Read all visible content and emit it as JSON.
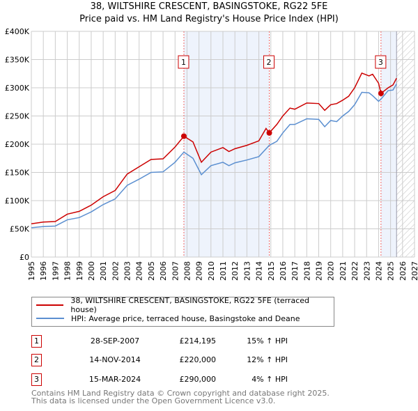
{
  "chart_data": {
    "type": "line",
    "title": "38, WILTSHIRE CRESCENT, BASINGSTOKE, RG22 5FE",
    "subtitle": "Price paid vs. HM Land Registry's House Price Index (HPI)",
    "xlim": [
      1995,
      2027
    ],
    "ylim": [
      0,
      400000
    ],
    "xticks": [
      "1995",
      "1996",
      "1997",
      "1998",
      "1999",
      "2000",
      "2001",
      "2002",
      "2003",
      "2004",
      "2005",
      "2006",
      "2007",
      "2008",
      "2009",
      "2010",
      "2011",
      "2012",
      "2013",
      "2014",
      "2015",
      "2016",
      "2017",
      "2018",
      "2019",
      "2020",
      "2021",
      "2022",
      "2023",
      "2024",
      "2025",
      "2026",
      "2027"
    ],
    "yticks": [
      {
        "v": 0,
        "l": "£0"
      },
      {
        "v": 50000,
        "l": "£50K"
      },
      {
        "v": 100000,
        "l": "£100K"
      },
      {
        "v": 150000,
        "l": "£150K"
      },
      {
        "v": 200000,
        "l": "£200K"
      },
      {
        "v": 250000,
        "l": "£250K"
      },
      {
        "v": 300000,
        "l": "£300K"
      },
      {
        "v": 350000,
        "l": "£350K"
      },
      {
        "v": 400000,
        "l": "£400K"
      }
    ],
    "grid": true,
    "data_end": 2025.5,
    "series": [
      {
        "name": "38, WILTSHIRE CRESCENT, BASINGSTOKE, RG22 5FE (terraced house)",
        "color": "#cc0000",
        "x": [
          1995,
          1996,
          1997,
          1998,
          1999,
          2000,
          2001,
          2002,
          2003,
          2004,
          2005,
          2006,
          2007,
          2007.74,
          2008.5,
          2009.2,
          2010,
          2011,
          2011.5,
          2012,
          2013,
          2014,
          2014.6,
          2014.87,
          2015.5,
          2016,
          2016.6,
          2017,
          2018,
          2019,
          2019.5,
          2020,
          2020.5,
          2021,
          2021.5,
          2022,
          2022.6,
          2023.2,
          2023.5,
          2024,
          2024.2,
          2024.8,
          2025.2,
          2025.5
        ],
        "y": [
          59000,
          62000,
          63000,
          76000,
          81000,
          92000,
          107000,
          118000,
          147000,
          160000,
          173000,
          174000,
          195000,
          214195,
          204000,
          168000,
          186000,
          194000,
          187000,
          192000,
          198000,
          206000,
          228000,
          220000,
          235000,
          250000,
          264000,
          262000,
          273000,
          272000,
          260000,
          270000,
          272000,
          278000,
          285000,
          300000,
          326000,
          321000,
          324000,
          308000,
          290000,
          300000,
          305000,
          317000
        ]
      },
      {
        "name": "HPI: Average price, terraced house, Basingstoke and Deane",
        "color": "#5b8fd0",
        "x": [
          1995,
          1996,
          1997,
          1998,
          1999,
          2000,
          2001,
          2002,
          2003,
          2004,
          2005,
          2006,
          2007,
          2007.74,
          2008.5,
          2009.2,
          2010,
          2011,
          2011.5,
          2012,
          2013,
          2014,
          2014.87,
          2015.5,
          2016,
          2016.6,
          2017,
          2018,
          2019,
          2019.5,
          2020,
          2020.5,
          2021,
          2021.5,
          2022,
          2022.6,
          2023.2,
          2023.5,
          2024,
          2024.2,
          2024.8,
          2025.2,
          2025.5
        ],
        "y": [
          52000,
          54000,
          55000,
          66000,
          70000,
          80000,
          93000,
          103000,
          127000,
          138000,
          150000,
          151000,
          168000,
          186000,
          175000,
          146000,
          162000,
          168000,
          162000,
          167000,
          172000,
          178000,
          198000,
          205000,
          220000,
          235000,
          235000,
          245000,
          244000,
          231000,
          242000,
          240000,
          250000,
          258000,
          270000,
          292000,
          291000,
          286000,
          276000,
          280000,
          295000,
          296000,
          307000
        ]
      }
    ],
    "sales": [
      {
        "label": "1",
        "x": 2007.74,
        "y": 214195,
        "date": "28-SEP-2007",
        "price": "£214,195",
        "hpi": "15% ↑ HPI"
      },
      {
        "label": "2",
        "x": 2014.87,
        "y": 220000,
        "date": "14-NOV-2014",
        "price": "£220,000",
        "hpi": "12% ↑ HPI"
      },
      {
        "label": "3",
        "x": 2024.2,
        "y": 290000,
        "date": "15-MAR-2024",
        "price": "£290,000",
        "hpi": "4% ↑ HPI"
      }
    ]
  },
  "footer": {
    "line1": "Contains HM Land Registry data © Crown copyright and database right 2025.",
    "line2": "This data is licensed under the Open Government Licence v3.0."
  }
}
